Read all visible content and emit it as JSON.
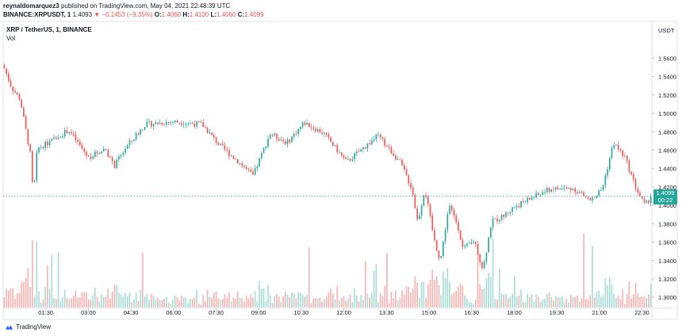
{
  "header": {
    "publisher": "reynaldomarquez3",
    "published_text": "published on TradingView.com, May 04, 2021 22:48:39 UTC",
    "symbol_full": "BINANCE:XRPUSDT, 1",
    "last": "1.4093",
    "change": "−0.1453 (−9.35%)",
    "o_label": "O:",
    "o_value": "1.4060",
    "h_label": "H:",
    "h_value": "1.4100",
    "l_label": "L:",
    "l_value": "1.4060",
    "c_label": "C:",
    "c_value": "1.4099"
  },
  "legend": {
    "title": "XRP / TetherUS, 1, BINANCE",
    "vol": "Vol"
  },
  "price_axis": {
    "currency": "USDT",
    "current_price": "1.4099",
    "countdown": "00:22"
  },
  "footer": {
    "brand": "TradingView"
  },
  "colors": {
    "up": "#26a69a",
    "down": "#ef5350",
    "up_vol": "#a8dcd5",
    "down_vol": "#f7b2b1"
  },
  "chart_data": {
    "type": "candlestick",
    "title": "XRP / TetherUS, 1, BINANCE",
    "interval": "1 minute",
    "y_ticks": [
      "1.5600",
      "1.5400",
      "1.5200",
      "1.5000",
      "1.4800",
      "1.4600",
      "1.4400",
      "1.4200",
      "1.4000",
      "1.3800",
      "1.3600",
      "1.3400",
      "1.3200",
      "1.3000"
    ],
    "x_ticks": [
      "01:30",
      "03:00",
      "04:30",
      "06:00",
      "07:30",
      "09:00",
      "10:30",
      "12:00",
      "13:30",
      "15:00",
      "16:30",
      "18:00",
      "19:30",
      "21:00",
      "22:30"
    ],
    "ylim": [
      1.295,
      1.575
    ],
    "xlim_hours": [
      0,
      22.85
    ],
    "current_price": 1.4099,
    "approx_path": [
      {
        "t": 0.0,
        "p": 1.552
      },
      {
        "t": 0.3,
        "p": 1.528
      },
      {
        "t": 0.6,
        "p": 1.515
      },
      {
        "t": 1.0,
        "p": 1.448
      },
      {
        "t": 1.05,
        "p": 1.405
      },
      {
        "t": 1.2,
        "p": 1.462
      },
      {
        "t": 1.6,
        "p": 1.468
      },
      {
        "t": 2.3,
        "p": 1.482
      },
      {
        "t": 3.0,
        "p": 1.452
      },
      {
        "t": 3.6,
        "p": 1.462
      },
      {
        "t": 3.9,
        "p": 1.442
      },
      {
        "t": 4.3,
        "p": 1.462
      },
      {
        "t": 5.0,
        "p": 1.488
      },
      {
        "t": 6.0,
        "p": 1.491
      },
      {
        "t": 7.0,
        "p": 1.488
      },
      {
        "t": 7.6,
        "p": 1.466
      },
      {
        "t": 8.3,
        "p": 1.447
      },
      {
        "t": 8.8,
        "p": 1.432
      },
      {
        "t": 9.4,
        "p": 1.478
      },
      {
        "t": 10.0,
        "p": 1.468
      },
      {
        "t": 10.6,
        "p": 1.49
      },
      {
        "t": 11.3,
        "p": 1.478
      },
      {
        "t": 12.1,
        "p": 1.447
      },
      {
        "t": 13.2,
        "p": 1.476
      },
      {
        "t": 14.0,
        "p": 1.446
      },
      {
        "t": 14.4,
        "p": 1.418
      },
      {
        "t": 14.6,
        "p": 1.382
      },
      {
        "t": 14.85,
        "p": 1.418
      },
      {
        "t": 15.2,
        "p": 1.36
      },
      {
        "t": 15.4,
        "p": 1.34
      },
      {
        "t": 15.7,
        "p": 1.4
      },
      {
        "t": 16.0,
        "p": 1.38
      },
      {
        "t": 16.2,
        "p": 1.352
      },
      {
        "t": 16.6,
        "p": 1.362
      },
      {
        "t": 16.9,
        "p": 1.33
      },
      {
        "t": 17.2,
        "p": 1.382
      },
      {
        "t": 17.6,
        "p": 1.388
      },
      {
        "t": 18.0,
        "p": 1.398
      },
      {
        "t": 18.6,
        "p": 1.408
      },
      {
        "t": 19.3,
        "p": 1.418
      },
      {
        "t": 20.1,
        "p": 1.418
      },
      {
        "t": 20.7,
        "p": 1.405
      },
      {
        "t": 21.1,
        "p": 1.418
      },
      {
        "t": 21.5,
        "p": 1.468
      },
      {
        "t": 21.9,
        "p": 1.452
      },
      {
        "t": 22.3,
        "p": 1.418
      },
      {
        "t": 22.6,
        "p": 1.4
      },
      {
        "t": 22.85,
        "p": 1.4099
      }
    ]
  }
}
